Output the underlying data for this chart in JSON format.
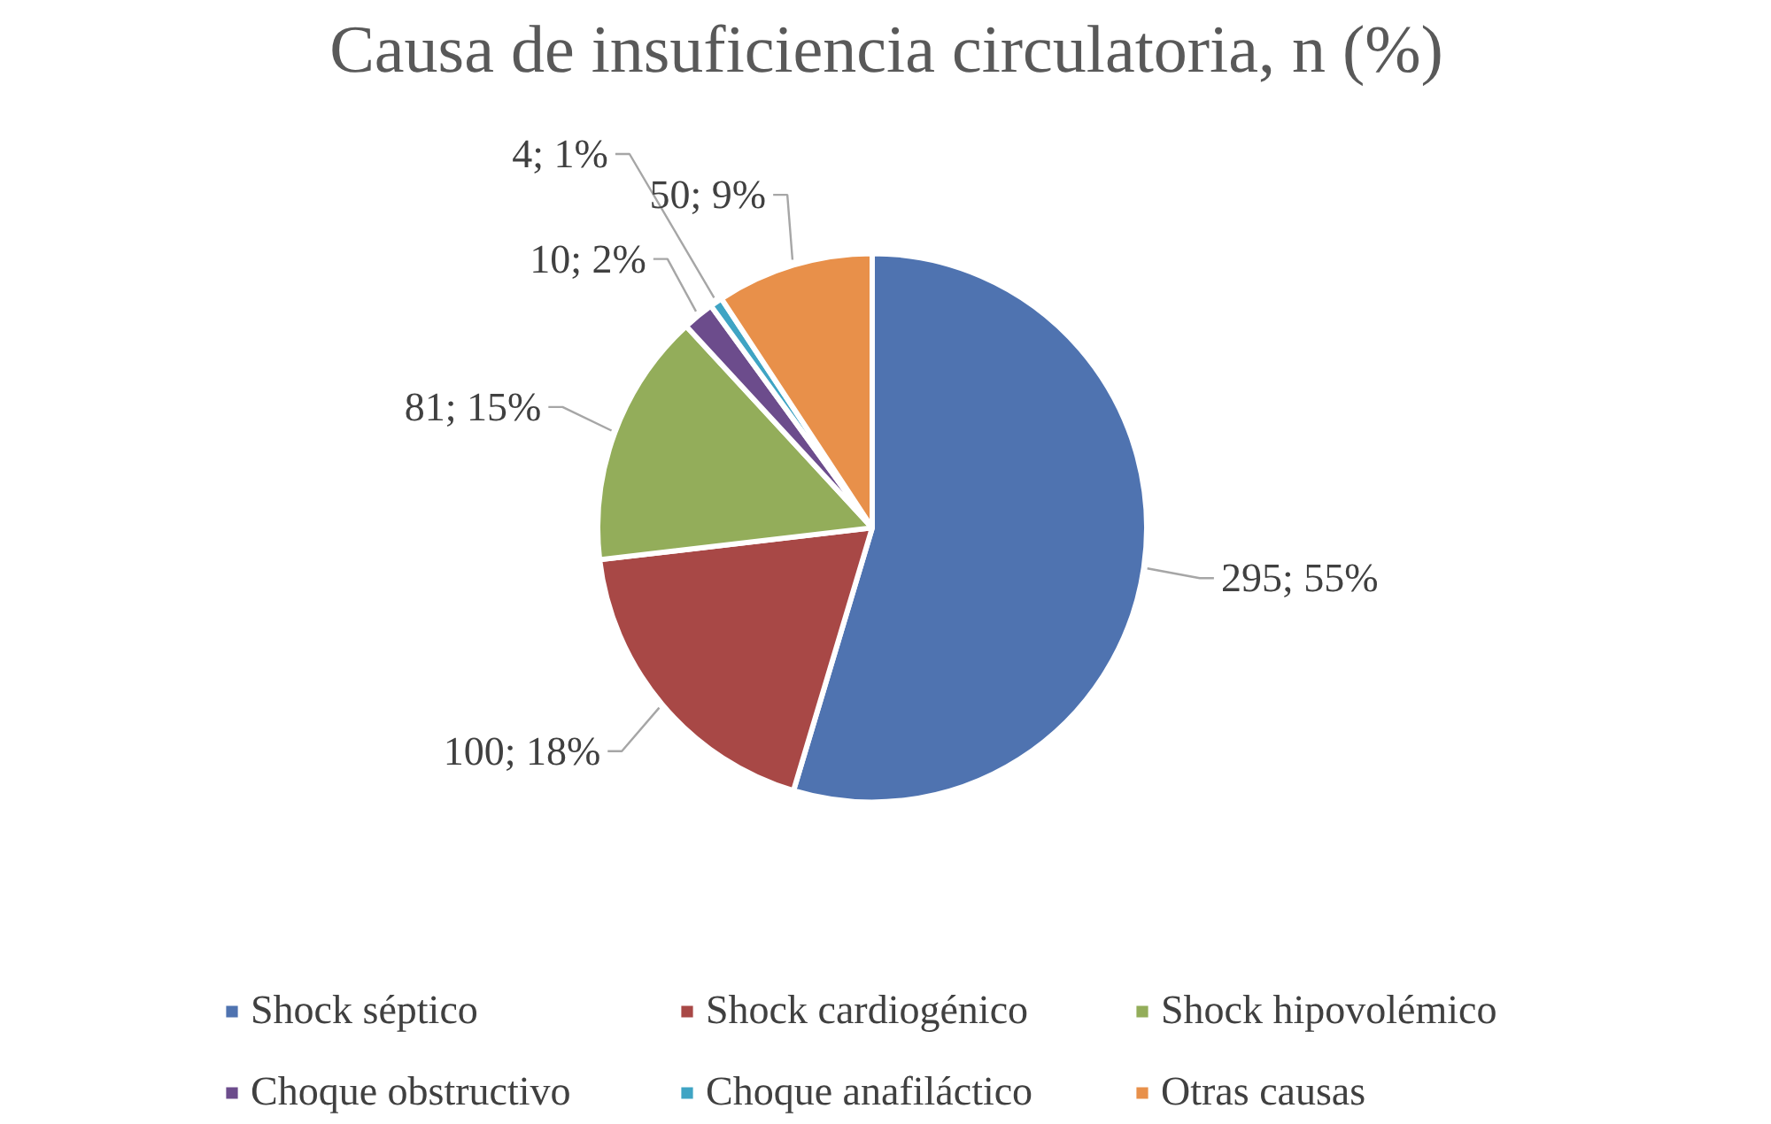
{
  "chart_data": {
    "type": "pie",
    "title": "Causa de insuficiencia circulatoria, n (%)",
    "categories": [
      "Shock séptico",
      "Shock cardiogénico",
      "Shock hipovolémico",
      "Choque obstructivo",
      "Choque anafiláctico",
      "Otras causas"
    ],
    "values": [
      295,
      100,
      81,
      10,
      4,
      50
    ],
    "colors": [
      "#4f73b0",
      "#a84846",
      "#93ad5a",
      "#6c4c8c",
      "#3fa4c4",
      "#e8904a"
    ],
    "value_labels": [
      "295; 55%",
      "100; 18%",
      "81; 15%",
      "10; 2%",
      "4; 1%",
      "50; 9%"
    ],
    "legend": "bottom"
  }
}
